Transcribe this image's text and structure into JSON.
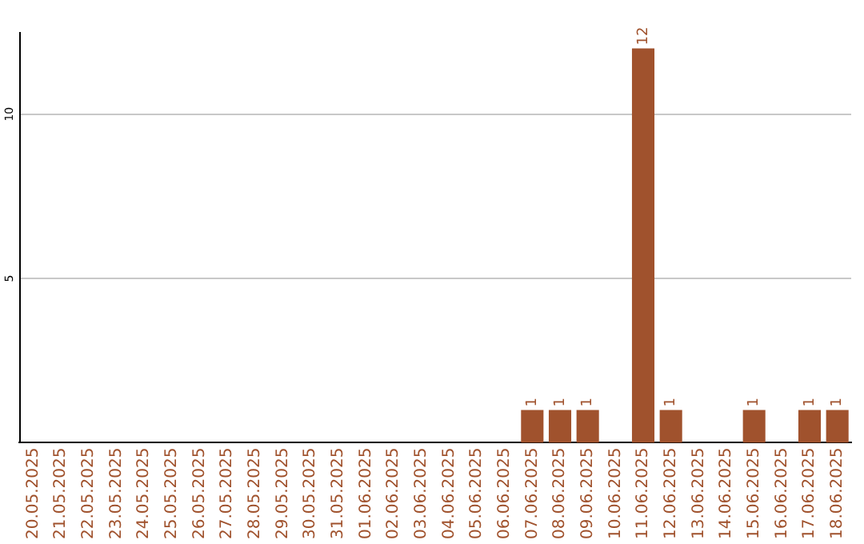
{
  "chart_data": {
    "type": "bar",
    "categories": [
      "20.05.2025",
      "21.05.2025",
      "22.05.2025",
      "23.05.2025",
      "24.05.2025",
      "25.05.2025",
      "26.05.2025",
      "27.05.2025",
      "28.05.2025",
      "29.05.2025",
      "30.05.2025",
      "31.05.2025",
      "01.06.2025",
      "02.06.2025",
      "03.06.2025",
      "04.06.2025",
      "05.06.2025",
      "06.06.2025",
      "07.06.2025",
      "08.06.2025",
      "09.06.2025",
      "10.06.2025",
      "11.06.2025",
      "12.06.2025",
      "13.06.2025",
      "14.06.2025",
      "15.06.2025",
      "16.06.2025",
      "17.06.2025",
      "18.06.2025"
    ],
    "values": [
      0,
      0,
      0,
      0,
      0,
      0,
      0,
      0,
      0,
      0,
      0,
      0,
      0,
      0,
      0,
      0,
      0,
      0,
      1,
      1,
      1,
      0,
      12,
      1,
      0,
      0,
      1,
      0,
      1,
      1
    ],
    "value_labels": [
      null,
      null,
      null,
      null,
      null,
      null,
      null,
      null,
      null,
      null,
      null,
      null,
      null,
      null,
      null,
      null,
      null,
      null,
      "1",
      "1",
      "1",
      null,
      "12",
      "1",
      null,
      null,
      "1",
      null,
      "1",
      "1"
    ],
    "color": "#a0522d",
    "ylim": [
      0,
      12.5
    ],
    "yticks": [
      5,
      10
    ],
    "grid": "y",
    "legend": false
  }
}
